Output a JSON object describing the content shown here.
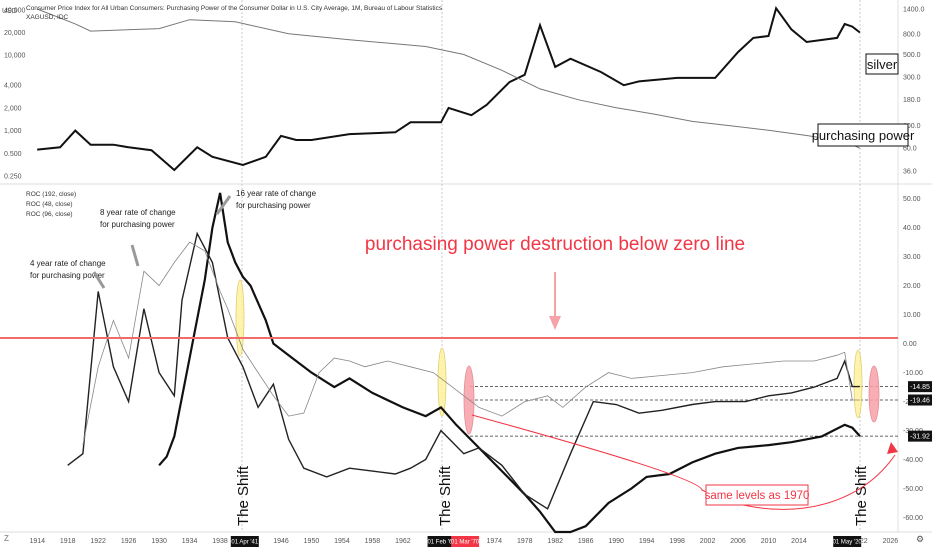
{
  "header": {
    "line1": "Consumer Price Index for All Urban Consumers: Purchasing Power of the Consumer Dollar in U.S. City Average, 1M, Bureau of Labour Statistics",
    "line2": "XAGUSD, IDC",
    "currency": "USD",
    "roc_labels": [
      "ROC (192, close)",
      "ROC (48, close)",
      "ROC (96, close)"
    ]
  },
  "annotations": {
    "headline": "purchasing power destruction below zero line",
    "silver": "silver",
    "purchasing_power": "purchasing power",
    "roc16": [
      "16 year rate of change",
      "for purchasing power"
    ],
    "roc8": [
      "8 year rate of change",
      "for purchasing power"
    ],
    "roc4": [
      "4 year rate of change",
      "for purchasing power"
    ],
    "shift": "The Shift",
    "same_levels": "same levels as 1970"
  },
  "colors": {
    "headline": "#f23645",
    "zero_line": "#f26b6b",
    "highlight_yellow": "#fff3a0",
    "highlight_red": "#f7a1a8",
    "axis_text": "#555555",
    "line_dark": "#111111",
    "line_gray": "#777777"
  },
  "chart_data": [
    {
      "type": "line",
      "title": "",
      "left_axis_ticks": [
        "40,000",
        "20,000",
        "10,000",
        "4,000",
        "2,000",
        "1,000",
        "0.500",
        "0.250"
      ],
      "right_axis_ticks": [
        "1400.0",
        "800.0",
        "500.0",
        "300.0",
        "180.0",
        "100.0",
        "60.0",
        "36.0"
      ],
      "scale": "log",
      "series": [
        {
          "name": "silver",
          "points": [
            [
              1914,
              0.56
            ],
            [
              1917,
              0.6
            ],
            [
              1919,
              1.0
            ],
            [
              1921,
              0.65
            ],
            [
              1924,
              0.65
            ],
            [
              1926,
              0.6
            ],
            [
              1929,
              0.55
            ],
            [
              1932,
              0.3
            ],
            [
              1935,
              0.6
            ],
            [
              1937,
              0.45
            ],
            [
              1941,
              0.35
            ],
            [
              1944,
              0.45
            ],
            [
              1946,
              0.85
            ],
            [
              1948,
              0.75
            ],
            [
              1950,
              0.75
            ],
            [
              1955,
              0.9
            ],
            [
              1961,
              0.95
            ],
            [
              1963,
              1.29
            ],
            [
              1967,
              1.29
            ],
            [
              1968,
              2.0
            ],
            [
              1971,
              1.6
            ],
            [
              1973,
              2.2
            ],
            [
              1976,
              4.4
            ],
            [
              1978,
              5.5
            ],
            [
              1980,
              25.0
            ],
            [
              1982,
              7.0
            ],
            [
              1984,
              9.0
            ],
            [
              1988,
              6.0
            ],
            [
              1991,
              4.0
            ],
            [
              1993,
              4.5
            ],
            [
              1998,
              5.0
            ],
            [
              2003,
              5.0
            ],
            [
              2006,
              11.0
            ],
            [
              2008,
              17.0
            ],
            [
              2010,
              18.0
            ],
            [
              2011,
              42.0
            ],
            [
              2013,
              22.0
            ],
            [
              2015,
              15.0
            ],
            [
              2019,
              17.0
            ],
            [
              2020,
              26.0
            ],
            [
              2021,
              24.0
            ],
            [
              2022,
              20.0
            ]
          ]
        },
        {
          "name": "purchasing power",
          "points": [
            [
              1914,
              1400
            ],
            [
              1919,
              1000
            ],
            [
              1921,
              850
            ],
            [
              1930,
              900
            ],
            [
              1934,
              1100
            ],
            [
              1940,
              1050
            ],
            [
              1947,
              800
            ],
            [
              1955,
              700
            ],
            [
              1965,
              600
            ],
            [
              1970,
              500
            ],
            [
              1975,
              350
            ],
            [
              1980,
              230
            ],
            [
              1985,
              180
            ],
            [
              1990,
              150
            ],
            [
              1995,
              130
            ],
            [
              2000,
              110
            ],
            [
              2005,
              100
            ],
            [
              2010,
              90
            ],
            [
              2015,
              80
            ],
            [
              2020,
              70
            ],
            [
              2022,
              60
            ]
          ]
        }
      ]
    },
    {
      "type": "line",
      "title": "",
      "x_ticks": [
        "1914",
        "1918",
        "1922",
        "1926",
        "1930",
        "1934",
        "1938",
        "1946",
        "1950",
        "1954",
        "1958",
        "1962",
        "1974",
        "1978",
        "1982",
        "1986",
        "1990",
        "1994",
        "1998",
        "2002",
        "2006",
        "2010",
        "2014",
        "2022",
        "2026"
      ],
      "xlim": [
        1912,
        2027
      ],
      "y_ticks": [
        50,
        40,
        30,
        20,
        10,
        0,
        -10,
        -20,
        -30,
        -40,
        -50,
        -60
      ],
      "ylim": [
        -65,
        53
      ],
      "highlighted_x_labels": [
        "01 Apr '41",
        "01 Feb '67",
        "01 Mar '70",
        "01 May '20"
      ],
      "price_labels": [
        "-14.85",
        "-19.46",
        "-31.92"
      ],
      "reference_levels": [
        -14.85,
        -19.46,
        -31.92
      ],
      "zero_line": 0,
      "series": [
        {
          "name": "ROC (192, close)",
          "points": [
            [
              1930,
              -42
            ],
            [
              1931,
              -39
            ],
            [
              1932,
              -32
            ],
            [
              1934,
              -5
            ],
            [
              1936,
              22
            ],
            [
              1937,
              40
            ],
            [
              1938,
              52
            ],
            [
              1939,
              35
            ],
            [
              1940,
              28
            ],
            [
              1941,
              23
            ],
            [
              1942,
              20
            ],
            [
              1944,
              8
            ],
            [
              1945,
              0
            ],
            [
              1947,
              -4
            ],
            [
              1950,
              -10
            ],
            [
              1953,
              -15
            ],
            [
              1955,
              -12
            ],
            [
              1958,
              -17
            ],
            [
              1962,
              -22
            ],
            [
              1965,
              -25
            ],
            [
              1967,
              -22
            ],
            [
              1969,
              -28
            ],
            [
              1972,
              -36
            ],
            [
              1975,
              -44
            ],
            [
              1978,
              -52
            ],
            [
              1980,
              -58
            ],
            [
              1982,
              -65
            ],
            [
              1984,
              -65
            ],
            [
              1986,
              -63
            ],
            [
              1989,
              -55
            ],
            [
              1992,
              -50
            ],
            [
              1994,
              -46
            ],
            [
              1997,
              -45
            ],
            [
              2000,
              -41
            ],
            [
              2003,
              -38
            ],
            [
              2006,
              -36
            ],
            [
              2010,
              -35
            ],
            [
              2013,
              -34
            ],
            [
              2017,
              -32
            ],
            [
              2020,
              -28
            ],
            [
              2021,
              -29
            ],
            [
              2022,
              -31.92
            ]
          ]
        },
        {
          "name": "ROC (48, close)",
          "points": [
            [
              1918,
              -42
            ],
            [
              1920,
              -38
            ],
            [
              1922,
              18
            ],
            [
              1924,
              -8
            ],
            [
              1926,
              -20
            ],
            [
              1928,
              12
            ],
            [
              1930,
              -10
            ],
            [
              1932,
              -18
            ],
            [
              1933,
              15
            ],
            [
              1935,
              38
            ],
            [
              1937,
              28
            ],
            [
              1939,
              2
            ],
            [
              1941,
              -8
            ],
            [
              1943,
              -22
            ],
            [
              1945,
              -14
            ],
            [
              1947,
              -33
            ],
            [
              1949,
              -43
            ],
            [
              1952,
              -46
            ],
            [
              1955,
              -43
            ],
            [
              1958,
              -44
            ],
            [
              1961,
              -45
            ],
            [
              1963,
              -43
            ],
            [
              1965,
              -40
            ],
            [
              1967,
              -30
            ],
            [
              1970,
              -38
            ],
            [
              1972,
              -36
            ],
            [
              1975,
              -42
            ],
            [
              1978,
              -52
            ],
            [
              1981,
              -57
            ],
            [
              1984,
              -38
            ],
            [
              1987,
              -20
            ],
            [
              1990,
              -21
            ],
            [
              1993,
              -24
            ],
            [
              1996,
              -23
            ],
            [
              2000,
              -21
            ],
            [
              2003,
              -20
            ],
            [
              2007,
              -20
            ],
            [
              2010,
              -18
            ],
            [
              2013,
              -17
            ],
            [
              2016,
              -15
            ],
            [
              2019,
              -12
            ],
            [
              2020,
              -6
            ],
            [
              2021,
              -14.85
            ],
            [
              2022,
              -14.85
            ]
          ]
        },
        {
          "name": "ROC (96, close)",
          "points": [
            [
              1920,
              -35
            ],
            [
              1922,
              -8
            ],
            [
              1924,
              8
            ],
            [
              1926,
              -5
            ],
            [
              1928,
              25
            ],
            [
              1930,
              20
            ],
            [
              1932,
              28
            ],
            [
              1934,
              35
            ],
            [
              1936,
              32
            ],
            [
              1938,
              18
            ],
            [
              1939,
              12
            ],
            [
              1941,
              -2
            ],
            [
              1943,
              -10
            ],
            [
              1945,
              -18
            ],
            [
              1947,
              -25
            ],
            [
              1949,
              -24
            ],
            [
              1951,
              -10
            ],
            [
              1953,
              -5
            ],
            [
              1955,
              -6
            ],
            [
              1957,
              -8
            ],
            [
              1960,
              -6
            ],
            [
              1963,
              -8
            ],
            [
              1966,
              -10
            ],
            [
              1968,
              -14
            ],
            [
              1970,
              -18
            ],
            [
              1972,
              -22
            ],
            [
              1975,
              -25
            ],
            [
              1978,
              -20
            ],
            [
              1981,
              -18
            ],
            [
              1983,
              -22
            ],
            [
              1986,
              -15
            ],
            [
              1989,
              -10
            ],
            [
              1992,
              -12
            ],
            [
              1996,
              -11
            ],
            [
              2000,
              -10
            ],
            [
              2004,
              -8
            ],
            [
              2008,
              -7
            ],
            [
              2012,
              -6
            ],
            [
              2016,
              -6
            ],
            [
              2019,
              -4
            ],
            [
              2020,
              -3
            ],
            [
              2021,
              -19.46
            ],
            [
              2022,
              -19.46
            ]
          ]
        }
      ]
    }
  ]
}
